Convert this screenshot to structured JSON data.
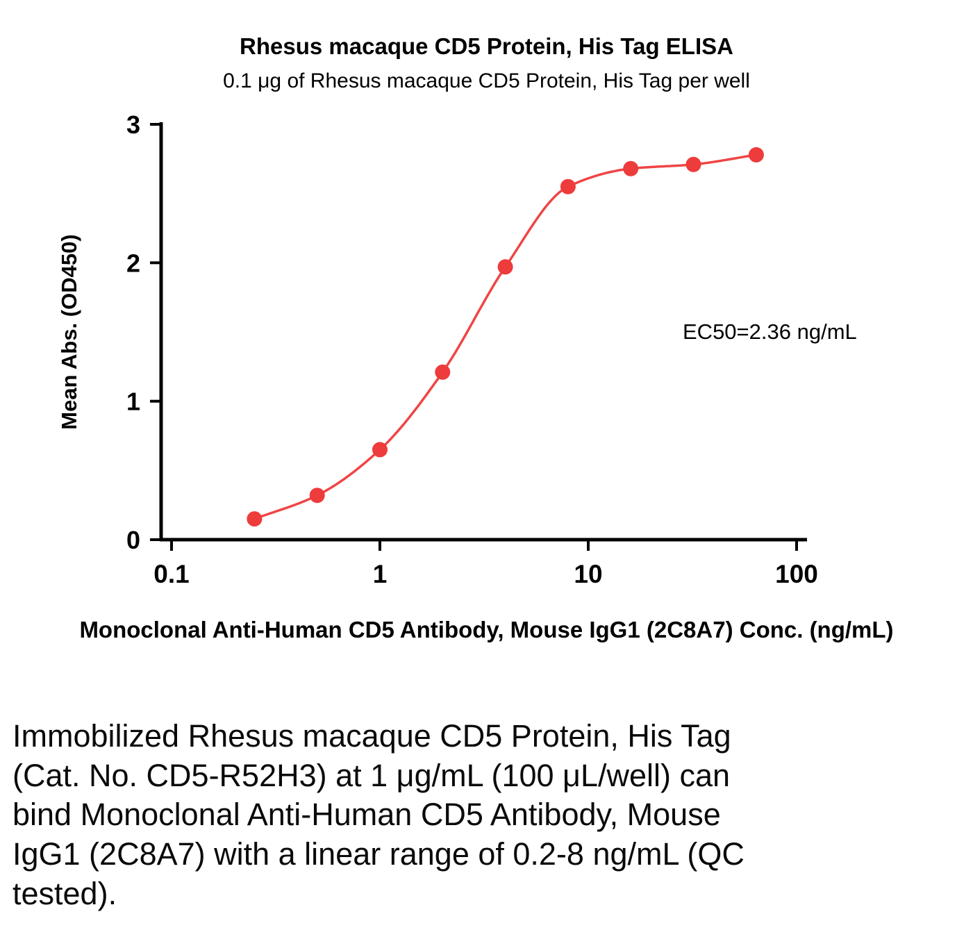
{
  "chart_data": {
    "type": "scatter",
    "title": "Rhesus macaque CD5 Protein, His Tag ELISA",
    "subtitle": "0.1 μg of Rhesus macaque CD5 Protein, His Tag per well",
    "xlabel": "Monoclonal Anti-Human CD5 Antibody, Mouse IgG1 (2C8A7) Conc. (ng/mL)",
    "ylabel": "Mean Abs. (OD450)",
    "annotation": "EC50=2.36 ng/mL",
    "x_scale": "log10",
    "xlim": [
      0.1,
      100
    ],
    "ylim": [
      0,
      3
    ],
    "x_ticks": [
      0.1,
      1,
      10,
      100
    ],
    "x_tick_labels": [
      "0.1",
      "1",
      "10",
      "100"
    ],
    "y_ticks": [
      0,
      1,
      2,
      3
    ],
    "y_tick_labels": [
      "0",
      "1",
      "2",
      "3"
    ],
    "x": [
      0.25,
      0.5,
      1,
      2,
      4,
      8,
      16,
      32,
      64
    ],
    "y": [
      0.15,
      0.32,
      0.65,
      1.21,
      1.97,
      2.55,
      2.68,
      2.71,
      2.78
    ],
    "point_color": "#ee3b3b",
    "line_color": "#ef4545",
    "axis_color": "#000000",
    "grid": "off",
    "legend": "none"
  },
  "caption": "Immobilized Rhesus macaque CD5 Protein, His Tag (Cat. No. CD5-R52H3) at 1 μg/mL (100 μL/well) can bind Monoclonal Anti-Human CD5 Antibody, Mouse IgG1 (2C8A7) with a linear range of 0.2-8 ng/mL (QC tested)."
}
